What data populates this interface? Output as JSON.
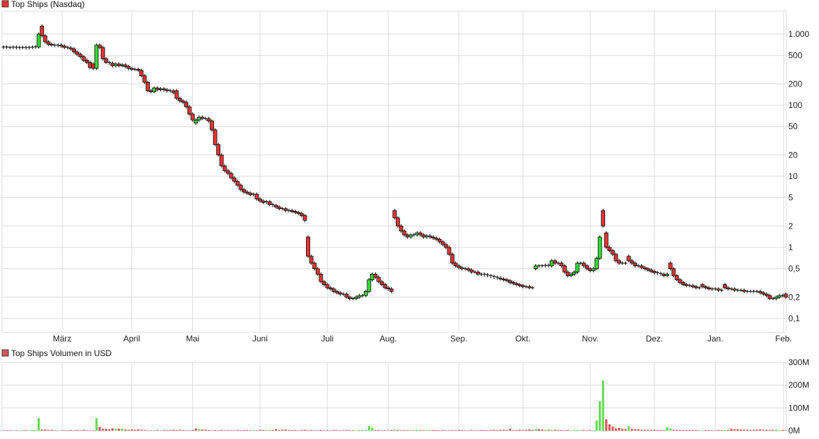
{
  "chart_data": [
    {
      "type": "candlestick",
      "title": "Top Ships (Nasdaq)",
      "yscale": "log",
      "ylim": [
        0.07,
        2200
      ],
      "yticks": [
        1000,
        500,
        200,
        100,
        50,
        20,
        10,
        5,
        2,
        1,
        0.5,
        0.2,
        0.1
      ],
      "ytick_labels": [
        "1.000",
        "500",
        "200",
        "100",
        "50",
        "20",
        "10",
        "5",
        "2",
        "1",
        "0,5",
        "0,2",
        "0,1"
      ],
      "xtick_labels": [
        "März",
        "April",
        "Mai",
        "Juni",
        "Juli",
        "Aug.",
        "Sep.",
        "Okt.",
        "Nov.",
        "Dez.",
        "Jan.",
        "Feb."
      ],
      "grid": true,
      "colors": {
        "up": "#33dd33",
        "down": "#ee3333",
        "outline": "#000000"
      },
      "open": [
        650,
        660,
        650,
        650,
        655,
        640,
        650,
        650,
        640,
        650,
        655,
        660,
        1300,
        950,
        780,
        720,
        700,
        690,
        700,
        680,
        650,
        640,
        620,
        560,
        520,
        480,
        430,
        400,
        380,
        330,
        700,
        650,
        450,
        400,
        390,
        360,
        380,
        360,
        370,
        350,
        330,
        320,
        320,
        310,
        260,
        210,
        160,
        155,
        175,
        165,
        170,
        165,
        160,
        160,
        160,
        125,
        115,
        110,
        95,
        75,
        56,
        62,
        68,
        65,
        65,
        60,
        45,
        28,
        20,
        14,
        12,
        11,
        9.5,
        8.5,
        7.5,
        6.5,
        6.0,
        5.8,
        5.5,
        5.6,
        4.8,
        4.5,
        4.3,
        4.4,
        4.0,
        3.9,
        3.7,
        3.5,
        3.5,
        3.3,
        3.3,
        3.2,
        3.1,
        3.0,
        2.8,
        1.4,
        0.75,
        0.6,
        0.5,
        0.42,
        0.33,
        0.3,
        0.27,
        0.26,
        0.24,
        0.23,
        0.22,
        0.22,
        0.2,
        0.19,
        0.19,
        0.2,
        0.21,
        0.21,
        0.24,
        0.35,
        0.42,
        0.38,
        0.33,
        0.3,
        0.27,
        0.26,
        3.3,
        2.6,
        2.0,
        1.7,
        1.5,
        1.4,
        1.5,
        1.5,
        1.6,
        1.5,
        1.4,
        1.45,
        1.4,
        1.35,
        1.3,
        1.2,
        1.1,
        1.0,
        0.8,
        0.6,
        0.55,
        0.52,
        0.5,
        0.5,
        0.48,
        0.45,
        0.45,
        0.42,
        0.42,
        0.41,
        0.4,
        0.39,
        0.38,
        0.37,
        0.36,
        0.35,
        0.34,
        0.32,
        0.31,
        0.3,
        0.29,
        0.28,
        0.28,
        0.27,
        0.5,
        0.55,
        0.55,
        0.55,
        0.56,
        0.55,
        0.65,
        0.6,
        0.6,
        0.55,
        0.45,
        0.4,
        0.42,
        0.45,
        0.6,
        0.6,
        0.55,
        0.5,
        0.47,
        0.5,
        0.7,
        3.3,
        1.6,
        1.0,
        0.9,
        0.8,
        0.65,
        0.6,
        0.6,
        0.75,
        0.65,
        0.6,
        0.55,
        0.55,
        0.52,
        0.5,
        0.48,
        0.46,
        0.44,
        0.43,
        0.42,
        0.4,
        0.6,
        0.5,
        0.4,
        0.35,
        0.32,
        0.3,
        0.29,
        0.29,
        0.28,
        0.27,
        0.3,
        0.28,
        0.27,
        0.26,
        0.26,
        0.26,
        0.25,
        0.3,
        0.27,
        0.26,
        0.26,
        0.25,
        0.25,
        0.25,
        0.24,
        0.24,
        0.24,
        0.24,
        0.24,
        0.23,
        0.22,
        0.21,
        0.19,
        0.19,
        0.2,
        0.21,
        0.22
      ],
      "close": [
        660,
        650,
        650,
        655,
        640,
        650,
        650,
        640,
        650,
        655,
        665,
        1000,
        950,
        780,
        720,
        700,
        690,
        700,
        680,
        650,
        640,
        620,
        560,
        520,
        480,
        430,
        400,
        340,
        330,
        700,
        650,
        450,
        400,
        390,
        360,
        380,
        360,
        370,
        350,
        330,
        320,
        320,
        310,
        260,
        210,
        160,
        155,
        175,
        165,
        170,
        165,
        160,
        160,
        150,
        125,
        115,
        110,
        95,
        75,
        62,
        62,
        68,
        65,
        65,
        60,
        45,
        28,
        20,
        14,
        12,
        11,
        9.5,
        8.5,
        7.5,
        6.5,
        6.0,
        5.8,
        5.5,
        5.6,
        4.8,
        4.5,
        4.3,
        4.4,
        4.0,
        3.9,
        3.7,
        3.5,
        3.5,
        3.3,
        3.3,
        3.2,
        3.1,
        3.0,
        2.8,
        2.4,
        0.75,
        0.6,
        0.5,
        0.42,
        0.33,
        0.3,
        0.27,
        0.26,
        0.24,
        0.23,
        0.22,
        0.22,
        0.2,
        0.19,
        0.19,
        0.2,
        0.21,
        0.21,
        0.24,
        0.35,
        0.42,
        0.38,
        0.33,
        0.3,
        0.27,
        0.26,
        0.24,
        2.6,
        2.0,
        1.7,
        1.5,
        1.4,
        1.5,
        1.5,
        1.6,
        1.5,
        1.4,
        1.45,
        1.4,
        1.35,
        1.3,
        1.2,
        1.1,
        1.0,
        0.8,
        0.6,
        0.55,
        0.52,
        0.5,
        0.5,
        0.48,
        0.45,
        0.45,
        0.42,
        0.42,
        0.41,
        0.4,
        0.39,
        0.38,
        0.37,
        0.36,
        0.35,
        0.34,
        0.32,
        0.31,
        0.3,
        0.29,
        0.28,
        0.28,
        0.27,
        0.27,
        0.55,
        0.55,
        0.55,
        0.56,
        0.55,
        0.65,
        0.6,
        0.6,
        0.55,
        0.45,
        0.4,
        0.42,
        0.45,
        0.6,
        0.6,
        0.55,
        0.5,
        0.47,
        0.5,
        0.7,
        1.4,
        2.0,
        1.0,
        0.9,
        0.8,
        0.65,
        0.6,
        0.6,
        0.6,
        0.65,
        0.6,
        0.55,
        0.55,
        0.52,
        0.5,
        0.48,
        0.46,
        0.44,
        0.43,
        0.42,
        0.4,
        0.42,
        0.5,
        0.4,
        0.35,
        0.32,
        0.3,
        0.29,
        0.29,
        0.28,
        0.27,
        0.27,
        0.28,
        0.27,
        0.26,
        0.26,
        0.26,
        0.25,
        0.25,
        0.27,
        0.26,
        0.26,
        0.25,
        0.25,
        0.25,
        0.24,
        0.24,
        0.24,
        0.24,
        0.24,
        0.23,
        0.22,
        0.21,
        0.19,
        0.19,
        0.2,
        0.21,
        0.21,
        0.2
      ]
    },
    {
      "type": "bar",
      "title": "Top Ships Volumen in USD",
      "ylim": [
        0,
        300
      ],
      "yticks": [
        300,
        200,
        100,
        0
      ],
      "ytick_labels": [
        "300M",
        "200M",
        "100M",
        "0M"
      ],
      "grid": true,
      "colors": {
        "up": "#66dd55",
        "down": "#dd5555"
      },
      "values": [
        2,
        2,
        2,
        2,
        2,
        2,
        2,
        3,
        2,
        3,
        3,
        55,
        5,
        5,
        3,
        4,
        2,
        2,
        2,
        2,
        2,
        3,
        2,
        3,
        2,
        4,
        2,
        2,
        2,
        55,
        17,
        8,
        8,
        6,
        10,
        8,
        9,
        9,
        5,
        4,
        5,
        4,
        6,
        4,
        3,
        2,
        2,
        3,
        3,
        2,
        3,
        2,
        3,
        4,
        3,
        4,
        3,
        2,
        2,
        3,
        10,
        6,
        5,
        4,
        3,
        2,
        3,
        2,
        3,
        2,
        3,
        2,
        2,
        3,
        2,
        3,
        3,
        2,
        3,
        2,
        4,
        3,
        3,
        2,
        3,
        6,
        3,
        4,
        5,
        3,
        3,
        3,
        2,
        3,
        4,
        2,
        3,
        2,
        2,
        3,
        2,
        2,
        2,
        3,
        2,
        2,
        2,
        3,
        2,
        2,
        2,
        3,
        2,
        4,
        20,
        12,
        3,
        3,
        2,
        2,
        2,
        3,
        5,
        3,
        2,
        3,
        2,
        3,
        2,
        3,
        3,
        2,
        3,
        2,
        3,
        3,
        2,
        3,
        2,
        2,
        3,
        2,
        3,
        3,
        2,
        2,
        3,
        2,
        2,
        3,
        3,
        2,
        3,
        4,
        3,
        4,
        4,
        3,
        8,
        3,
        3,
        4,
        3,
        4,
        5,
        3,
        6,
        7,
        5,
        4,
        4,
        3,
        4,
        3,
        3,
        2,
        3,
        2,
        3,
        3,
        2,
        3,
        2,
        3,
        2,
        45,
        130,
        220,
        50,
        28,
        18,
        10,
        12,
        8,
        6,
        20,
        8,
        6,
        6,
        4,
        4,
        3,
        3,
        4,
        3,
        3,
        2,
        15,
        10,
        4,
        3,
        3,
        3,
        3,
        3,
        3,
        3,
        2,
        2,
        3,
        3,
        2,
        2,
        3,
        3,
        3,
        3,
        8,
        6,
        6,
        5,
        4,
        4,
        3,
        4,
        5,
        6,
        4,
        4,
        3,
        4,
        4,
        3,
        3,
        2
      ]
    }
  ]
}
